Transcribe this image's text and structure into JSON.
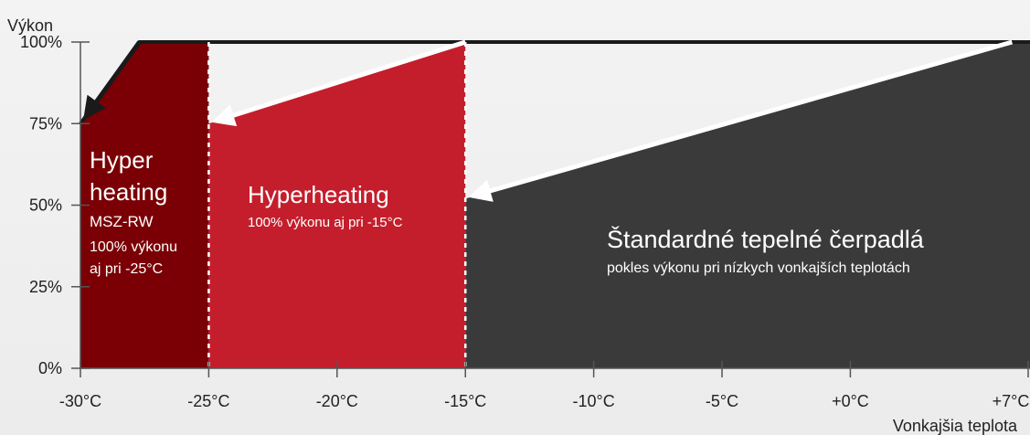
{
  "chart_data": {
    "type": "area",
    "title": "",
    "ylabel": "Výkon",
    "xlabel": "Vonkajšia teplota",
    "xlim": [
      -30,
      7
    ],
    "ylim": [
      0,
      100
    ],
    "x_ticks": [
      -30,
      -25,
      -20,
      -15,
      -10,
      -5,
      0,
      7
    ],
    "x_tick_labels": [
      "-30°C",
      "-25°C",
      "-20°C",
      "-15°C",
      "-10°C",
      "-5°C",
      "+0°C",
      "+7°C"
    ],
    "y_ticks": [
      0,
      25,
      50,
      75,
      100
    ],
    "y_tick_labels": [
      "0%",
      "25%",
      "50%",
      "75%",
      "100%"
    ],
    "series": [
      {
        "color": "#7a0005",
        "points": [
          [
            -30,
            75
          ],
          [
            -27.7,
            100
          ],
          [
            -25,
            100
          ]
        ],
        "x_range": [
          -30,
          -25
        ]
      },
      {
        "color": "#c41e2c",
        "points": [
          [
            -25,
            75
          ],
          [
            -15,
            100
          ]
        ],
        "x_range": [
          -25,
          -15
        ]
      },
      {
        "color": "#3a3a3a",
        "points": [
          [
            -15,
            52
          ],
          [
            6.3,
            100
          ]
        ],
        "x_range": [
          -15,
          7
        ]
      }
    ],
    "arrows": [
      {
        "from": [
          -27.7,
          100
        ],
        "to": [
          -30,
          75
        ],
        "color": "#1a1a1a"
      },
      {
        "from": [
          -15,
          100
        ],
        "to": [
          -25,
          75
        ],
        "color": "#ffffff"
      },
      {
        "from": [
          6.3,
          100
        ],
        "to": [
          -15,
          52
        ],
        "color": "#ffffff"
      }
    ],
    "annotations": {
      "hyper_rw": {
        "title_line1": "Hyper",
        "title_line2": "heating",
        "model": "MSZ-RW",
        "desc_line1": "100% výkonu",
        "desc_line2": "aj pri -25°C"
      },
      "hyperheating": {
        "title": "Hyperheating",
        "desc": "100% výkonu aj pri -15°C"
      },
      "standard": {
        "title": "Štandardné tepelné čerpadlá",
        "desc": "pokles výkonu pri nízkych vonkajších teplotách"
      }
    },
    "grid": false,
    "legend": "none"
  }
}
